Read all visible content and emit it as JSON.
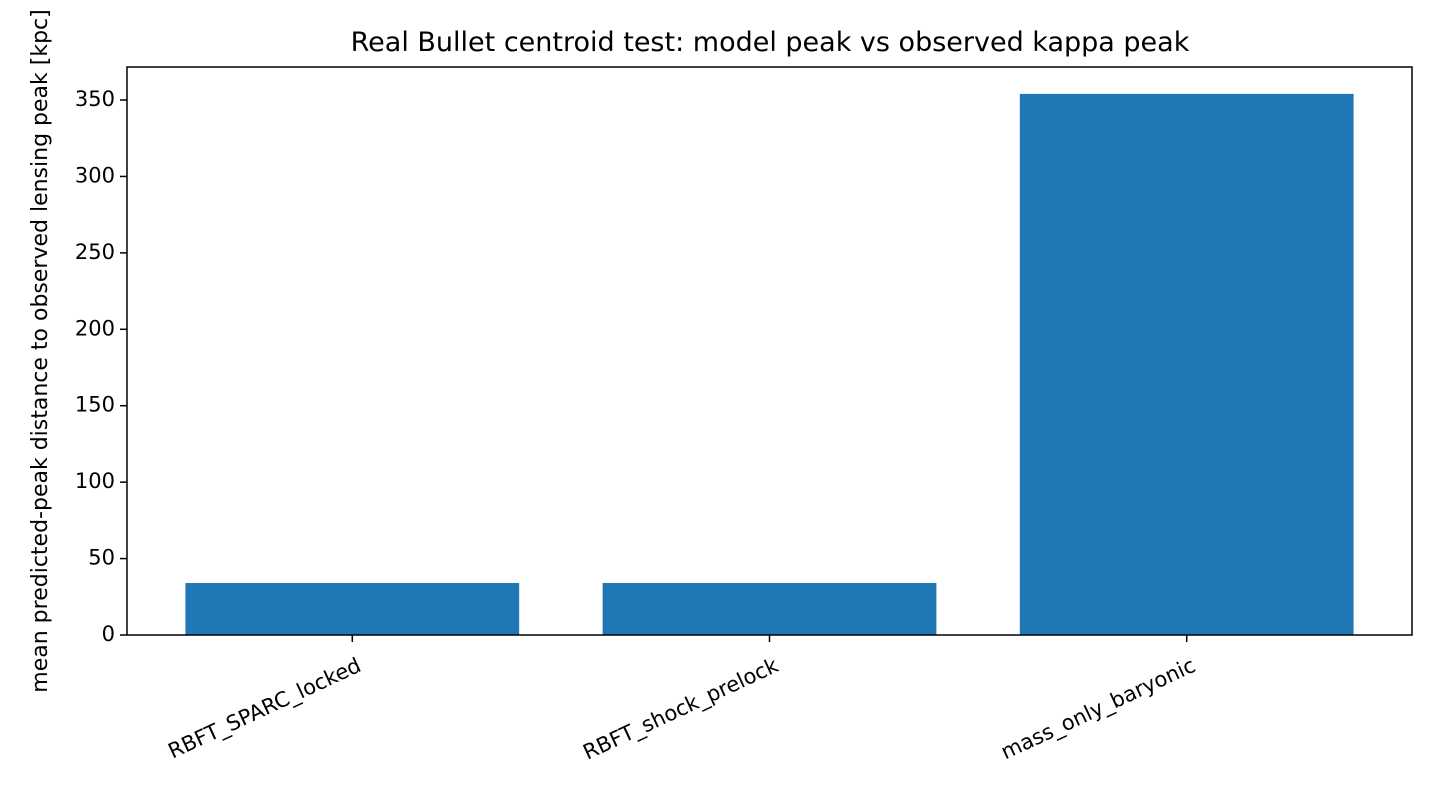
{
  "chart_data": {
    "type": "bar",
    "title": "Real Bullet centroid test: model peak vs observed kappa peak",
    "y_label": "mean predicted-peak distance to observed lensing peak [kpc]",
    "categories": [
      "RBFT_SPARC_locked",
      "RBFT_shock_prelock",
      "mass_only_baryonic"
    ],
    "values": [
      34,
      34,
      354
    ],
    "color": "#1f77b4",
    "ylim": [
      0,
      371.6
    ],
    "yticks": [
      0,
      50,
      100,
      150,
      200,
      250,
      300,
      350
    ],
    "grid": false
  }
}
